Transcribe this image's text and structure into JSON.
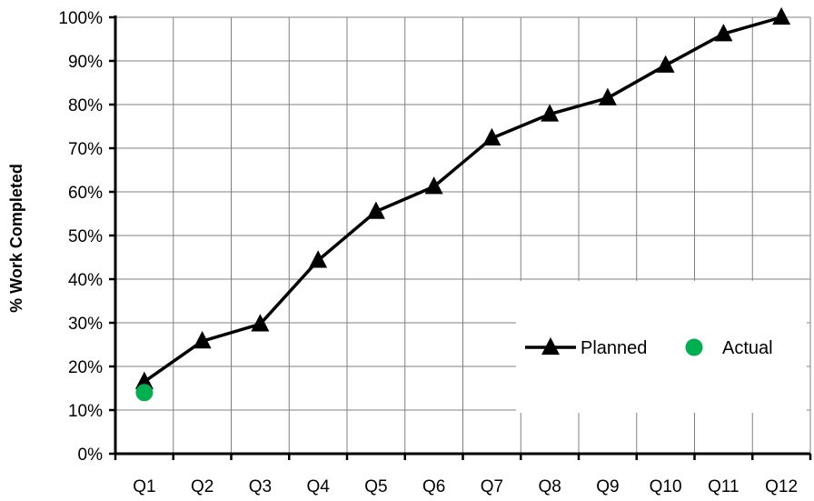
{
  "chart_data": {
    "type": "line",
    "title": "",
    "xlabel": "",
    "ylabel": "% Work Completed",
    "categories": [
      "Q1",
      "Q2",
      "Q3",
      "Q4",
      "Q5",
      "Q6",
      "Q7",
      "Q8",
      "Q9",
      "Q10",
      "Q11",
      "Q12"
    ],
    "y_ticks": [
      "0%",
      "10%",
      "20%",
      "30%",
      "40%",
      "50%",
      "60%",
      "70%",
      "80%",
      "90%",
      "100%"
    ],
    "ylim": [
      0,
      100
    ],
    "grid": true,
    "legend_position": "lower-right",
    "series": [
      {
        "name": "Planned",
        "marker": "triangle",
        "color": "#000000",
        "values": [
          16.5,
          25.8,
          29.7,
          44.3,
          55.5,
          61.2,
          72.3,
          77.8,
          81.5,
          89.0,
          96.2,
          100.0
        ]
      },
      {
        "name": "Actual",
        "marker": "circle",
        "color": "#00b050",
        "values": [
          14.0,
          null,
          null,
          null,
          null,
          null,
          null,
          null,
          null,
          null,
          null,
          null
        ]
      }
    ]
  }
}
